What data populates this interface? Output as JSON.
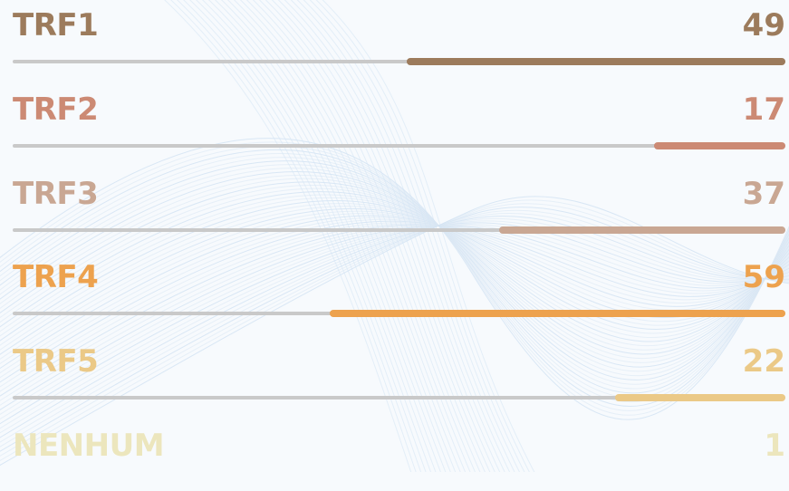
{
  "chart_data": {
    "type": "bar",
    "categories": [
      "TRF1",
      "TRF2",
      "TRF3",
      "TRF4",
      "TRF5",
      "NENHUM"
    ],
    "values": [
      49,
      17,
      37,
      59,
      22,
      1
    ],
    "xlim": [
      0,
      100
    ],
    "colors": [
      "#9c7b5c",
      "#cc8a74",
      "#c9a793",
      "#eda24e",
      "#ebc987",
      "#ece6bd"
    ],
    "track_color": "#c9c9c9",
    "grid": false
  }
}
